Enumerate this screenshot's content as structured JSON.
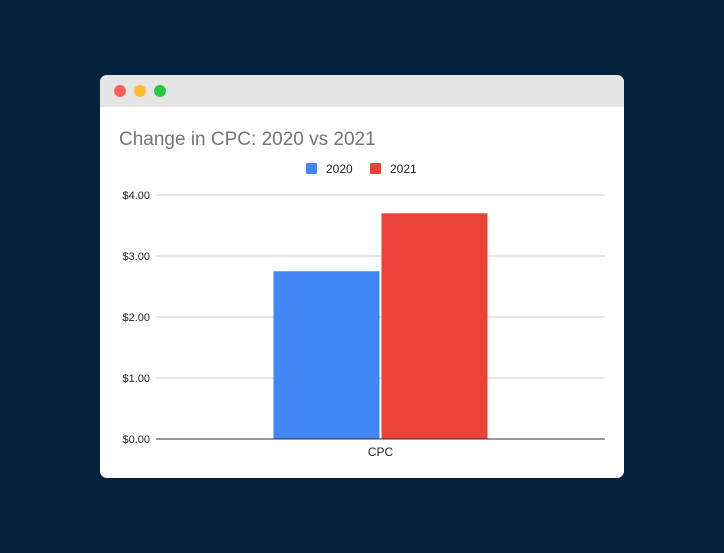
{
  "window": {
    "controls": {
      "close_color": "#fe5f57",
      "minimize_color": "#febc2e",
      "zoom_color": "#28c840"
    }
  },
  "chart_data": {
    "type": "bar",
    "title": "Change in CPC: 2020 vs 2021",
    "categories": [
      "CPC"
    ],
    "series": [
      {
        "name": "2020",
        "values": [
          2.75
        ],
        "color": "#4285f4"
      },
      {
        "name": "2021",
        "values": [
          3.7
        ],
        "color": "#ea4335"
      }
    ],
    "xlabel": "",
    "ylabel": "",
    "ylim": [
      0,
      4
    ],
    "y_ticks": [
      {
        "value": 0,
        "label": "$0.00"
      },
      {
        "value": 1,
        "label": "$1.00"
      },
      {
        "value": 2,
        "label": "$2.00"
      },
      {
        "value": 3,
        "label": "$3.00"
      },
      {
        "value": 4,
        "label": "$4.00"
      }
    ],
    "grid": true,
    "legend_position": "top-center"
  }
}
